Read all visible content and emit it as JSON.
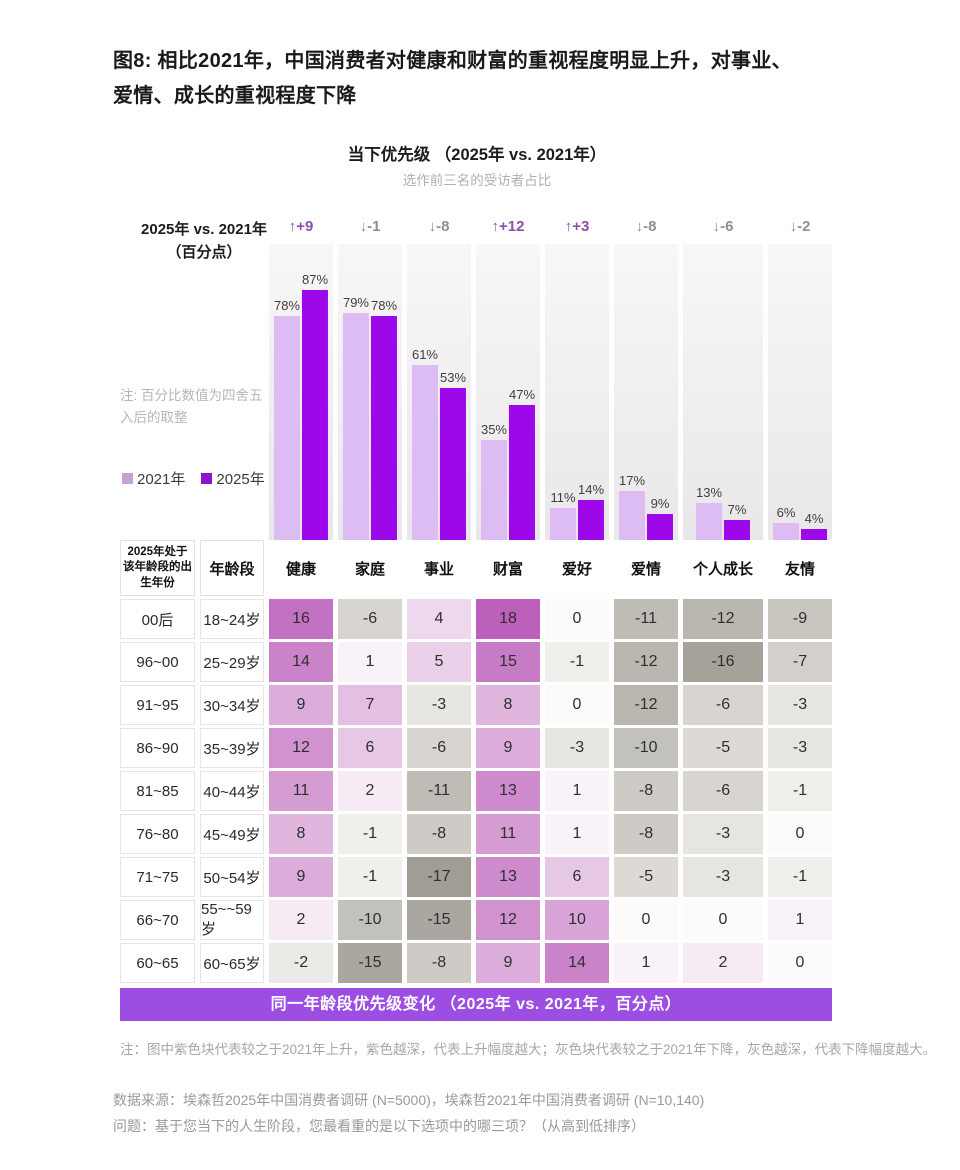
{
  "figure_title": {
    "line1": "图8: 相比2021年，中国消费者对健康和财富的重视程度明显上升，对事业、",
    "line2": "爱情、成长的重视程度下降"
  },
  "chart": {
    "delta_axis_line1": "2025年 vs. 2021年",
    "delta_axis_line2": "（百分点）",
    "side_note": "注: 百分比数值为四舍五入后的取整",
    "legend_2021_label": "2021年",
    "legend_2025_label": "2025年"
  },
  "chart_data": [
    {
      "type": "bar",
      "title": "当下优先级 （2025年 vs. 2021年）",
      "subtitle": "选作前三名的受访者占比",
      "categories": [
        "健康",
        "家庭",
        "事业",
        "财富",
        "爱好",
        "爱情",
        "个人成长",
        "友情"
      ],
      "series": [
        {
          "name": "2021年",
          "values": [
            78,
            79,
            61,
            35,
            11,
            17,
            13,
            6
          ]
        },
        {
          "name": "2025年",
          "values": [
            87,
            78,
            53,
            47,
            14,
            9,
            7,
            4
          ]
        }
      ],
      "deltas": [
        {
          "dir": "up",
          "arrow": "↑",
          "label": "+9"
        },
        {
          "dir": "down",
          "arrow": "↓",
          "label": "-1"
        },
        {
          "dir": "down",
          "arrow": "↓",
          "label": "-8"
        },
        {
          "dir": "up",
          "arrow": "↑",
          "label": "+12"
        },
        {
          "dir": "up",
          "arrow": "↑",
          "label": "+3"
        },
        {
          "dir": "down",
          "arrow": "↓",
          "label": "-8"
        },
        {
          "dir": "down",
          "arrow": "↓",
          "label": "-6"
        },
        {
          "dir": "down",
          "arrow": "↓",
          "label": "-2"
        }
      ],
      "unit": "%",
      "ylim": [
        0,
        100
      ],
      "grid": false,
      "legend_position": "left"
    },
    {
      "type": "heatmap",
      "title": "同一年龄段优先级变化 （2025年 vs. 2021年，百分点）",
      "row_header_labels": [
        "2025年处于该年龄段的出生年份",
        "年龄段"
      ],
      "columns": [
        "健康",
        "家庭",
        "事业",
        "财富",
        "爱好",
        "爱情",
        "个人成长",
        "友情"
      ],
      "rows": [
        {
          "birth": "00后",
          "age": "18~24岁",
          "values": [
            16,
            -6,
            4,
            18,
            0,
            -11,
            -12,
            -9
          ]
        },
        {
          "birth": "96~00",
          "age": "25~29岁",
          "values": [
            14,
            1,
            5,
            15,
            -1,
            -12,
            -16,
            -7
          ]
        },
        {
          "birth": "91~95",
          "age": "30~34岁",
          "values": [
            9,
            7,
            -3,
            8,
            0,
            -12,
            -6,
            -3
          ]
        },
        {
          "birth": "86~90",
          "age": "35~39岁",
          "values": [
            12,
            6,
            -6,
            9,
            -3,
            -10,
            -5,
            -3
          ]
        },
        {
          "birth": "81~85",
          "age": "40~44岁",
          "values": [
            11,
            2,
            -11,
            13,
            1,
            -8,
            -6,
            -1
          ]
        },
        {
          "birth": "76~80",
          "age": "45~49岁",
          "values": [
            8,
            -1,
            -8,
            11,
            1,
            -8,
            -3,
            0
          ]
        },
        {
          "birth": "71~75",
          "age": "50~54岁",
          "values": [
            9,
            -1,
            -17,
            13,
            6,
            -5,
            -3,
            -1
          ]
        },
        {
          "birth": "66~70",
          "age": "55~~59岁",
          "values": [
            2,
            -10,
            -15,
            12,
            10,
            0,
            0,
            1
          ]
        },
        {
          "birth": "60~65",
          "age": "60~65岁",
          "values": [
            -2,
            -15,
            -8,
            9,
            14,
            1,
            2,
            0
          ]
        }
      ]
    }
  ],
  "banner": {
    "text": "同一年龄段优先级变化 （2025年 vs. 2021年，百分点）"
  },
  "footnotes": {
    "color_note": "注：图中紫色块代表较之于2021年上升，紫色越深，代表上升幅度越大；灰色块代表较之于2021年下降，灰色越深，代表下降幅度越大。",
    "source": "数据来源：埃森哲2025年中国消费者调研 (N=5000)，埃森哲2021年中国消费者调研 (N=10,140)",
    "question": "问题：基于您当下的人生阶段，您最看重的是以下选项中的哪三项？（从高到低排序）"
  },
  "colors": {
    "bar_2021": "#dcbcf2",
    "bar_2025": "#9d08ea",
    "legend_2021": "#c2a4d4",
    "legend_2025": "#8e14c9",
    "delta_up": "#8e4fa8",
    "delta_down": "#8f8f8f",
    "banner_bg": "#9c4ee2",
    "heatmap_pos_max": "#b857b7",
    "heatmap_pos_min": "#fdfbfc",
    "heatmap_neg_max": "#96938a",
    "heatmap_neg_min": "#f6f4f1",
    "heatmap_zero": "#fcfbfa"
  }
}
